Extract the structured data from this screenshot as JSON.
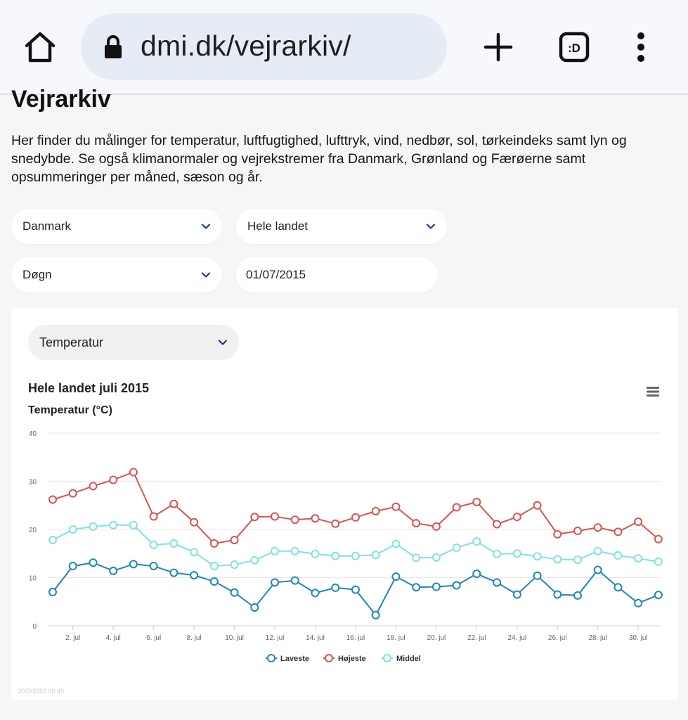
{
  "browser": {
    "url": "dmi.dk/vejrarkiv/",
    "icons": [
      "home-icon",
      "lock-icon",
      "plus-icon",
      "tab-switcher-icon",
      "more-vert-icon"
    ],
    "tab_badge": ":D"
  },
  "page": {
    "title": "Vejrarkiv",
    "intro": "Her finder du målinger for temperatur, luftfugtighed, lufttryk, vind, nedbør, sol, tørkeindeks samt lyn og snedybde. Se også klimanormaler og vejrekstremer fra Danmark, Grønland og Færøerne samt opsummeringer per måned, sæson og år."
  },
  "filters": {
    "country": "Danmark",
    "region": "Hele landet",
    "period": "Døgn",
    "date": "01/07/2015"
  },
  "chart_panel": {
    "parameter": "Temperatur",
    "menu_icon": "hamburger-icon",
    "timestamp": "20/7/2022 00:45"
  },
  "colors": {
    "laveste": "#1f86b9",
    "hojeste": "#d9534f",
    "middel": "#7fe3e0",
    "accent": "#1a3d7c"
  },
  "chart_data": {
    "type": "line",
    "title": "Hele landet juli 2015",
    "subtitle": "Temperatur (°C)",
    "ylim": [
      0,
      40
    ],
    "yticks": [
      "0",
      "10",
      "20",
      "30",
      "40"
    ],
    "x": [
      1,
      2,
      3,
      4,
      5,
      6,
      7,
      8,
      9,
      10,
      11,
      12,
      13,
      14,
      15,
      16,
      17,
      18,
      19,
      20,
      21,
      22,
      23,
      24,
      25,
      26,
      27,
      28,
      29,
      30,
      31
    ],
    "xtick_labels": [
      "2. jul",
      "4. jul",
      "6. jul",
      "8. jul",
      "10. jul",
      "12. jul",
      "14. jul",
      "16. jul",
      "18. jul",
      "20. jul",
      "22. jul",
      "24. jul",
      "26. jul",
      "28. jul",
      "30. jul"
    ],
    "xtick_days": [
      2,
      4,
      6,
      8,
      10,
      12,
      14,
      16,
      18,
      20,
      22,
      24,
      26,
      28,
      30
    ],
    "grid": true,
    "legend": "bottom-center",
    "series": [
      {
        "name": "Laveste",
        "values": [
          7.0,
          12.4,
          13.1,
          11.4,
          12.8,
          12.4,
          11.0,
          10.5,
          9.2,
          6.9,
          3.8,
          9.0,
          9.4,
          6.8,
          7.9,
          7.5,
          2.2,
          10.2,
          8.0,
          8.1,
          8.4,
          10.8,
          9.0,
          6.5,
          10.4,
          6.5,
          6.3,
          11.6,
          8.0,
          4.7,
          6.4
        ]
      },
      {
        "name": "Højeste",
        "values": [
          26.2,
          27.5,
          29.0,
          30.3,
          31.9,
          22.7,
          25.3,
          21.5,
          17.1,
          17.8,
          22.6,
          22.7,
          22.0,
          22.3,
          21.2,
          22.5,
          23.8,
          24.7,
          21.3,
          20.6,
          24.6,
          25.7,
          21.1,
          22.6,
          25.0,
          19.0,
          19.7,
          20.4,
          19.5,
          21.6,
          18.0
        ]
      },
      {
        "name": "Middel",
        "values": [
          17.8,
          20.0,
          20.6,
          20.9,
          20.9,
          16.8,
          17.1,
          15.3,
          12.4,
          12.7,
          13.6,
          15.5,
          15.5,
          14.9,
          14.5,
          14.5,
          14.7,
          17.0,
          14.1,
          14.2,
          16.2,
          17.5,
          14.9,
          15.0,
          14.4,
          13.8,
          13.7,
          15.5,
          14.6,
          14.0,
          13.3
        ]
      }
    ]
  }
}
